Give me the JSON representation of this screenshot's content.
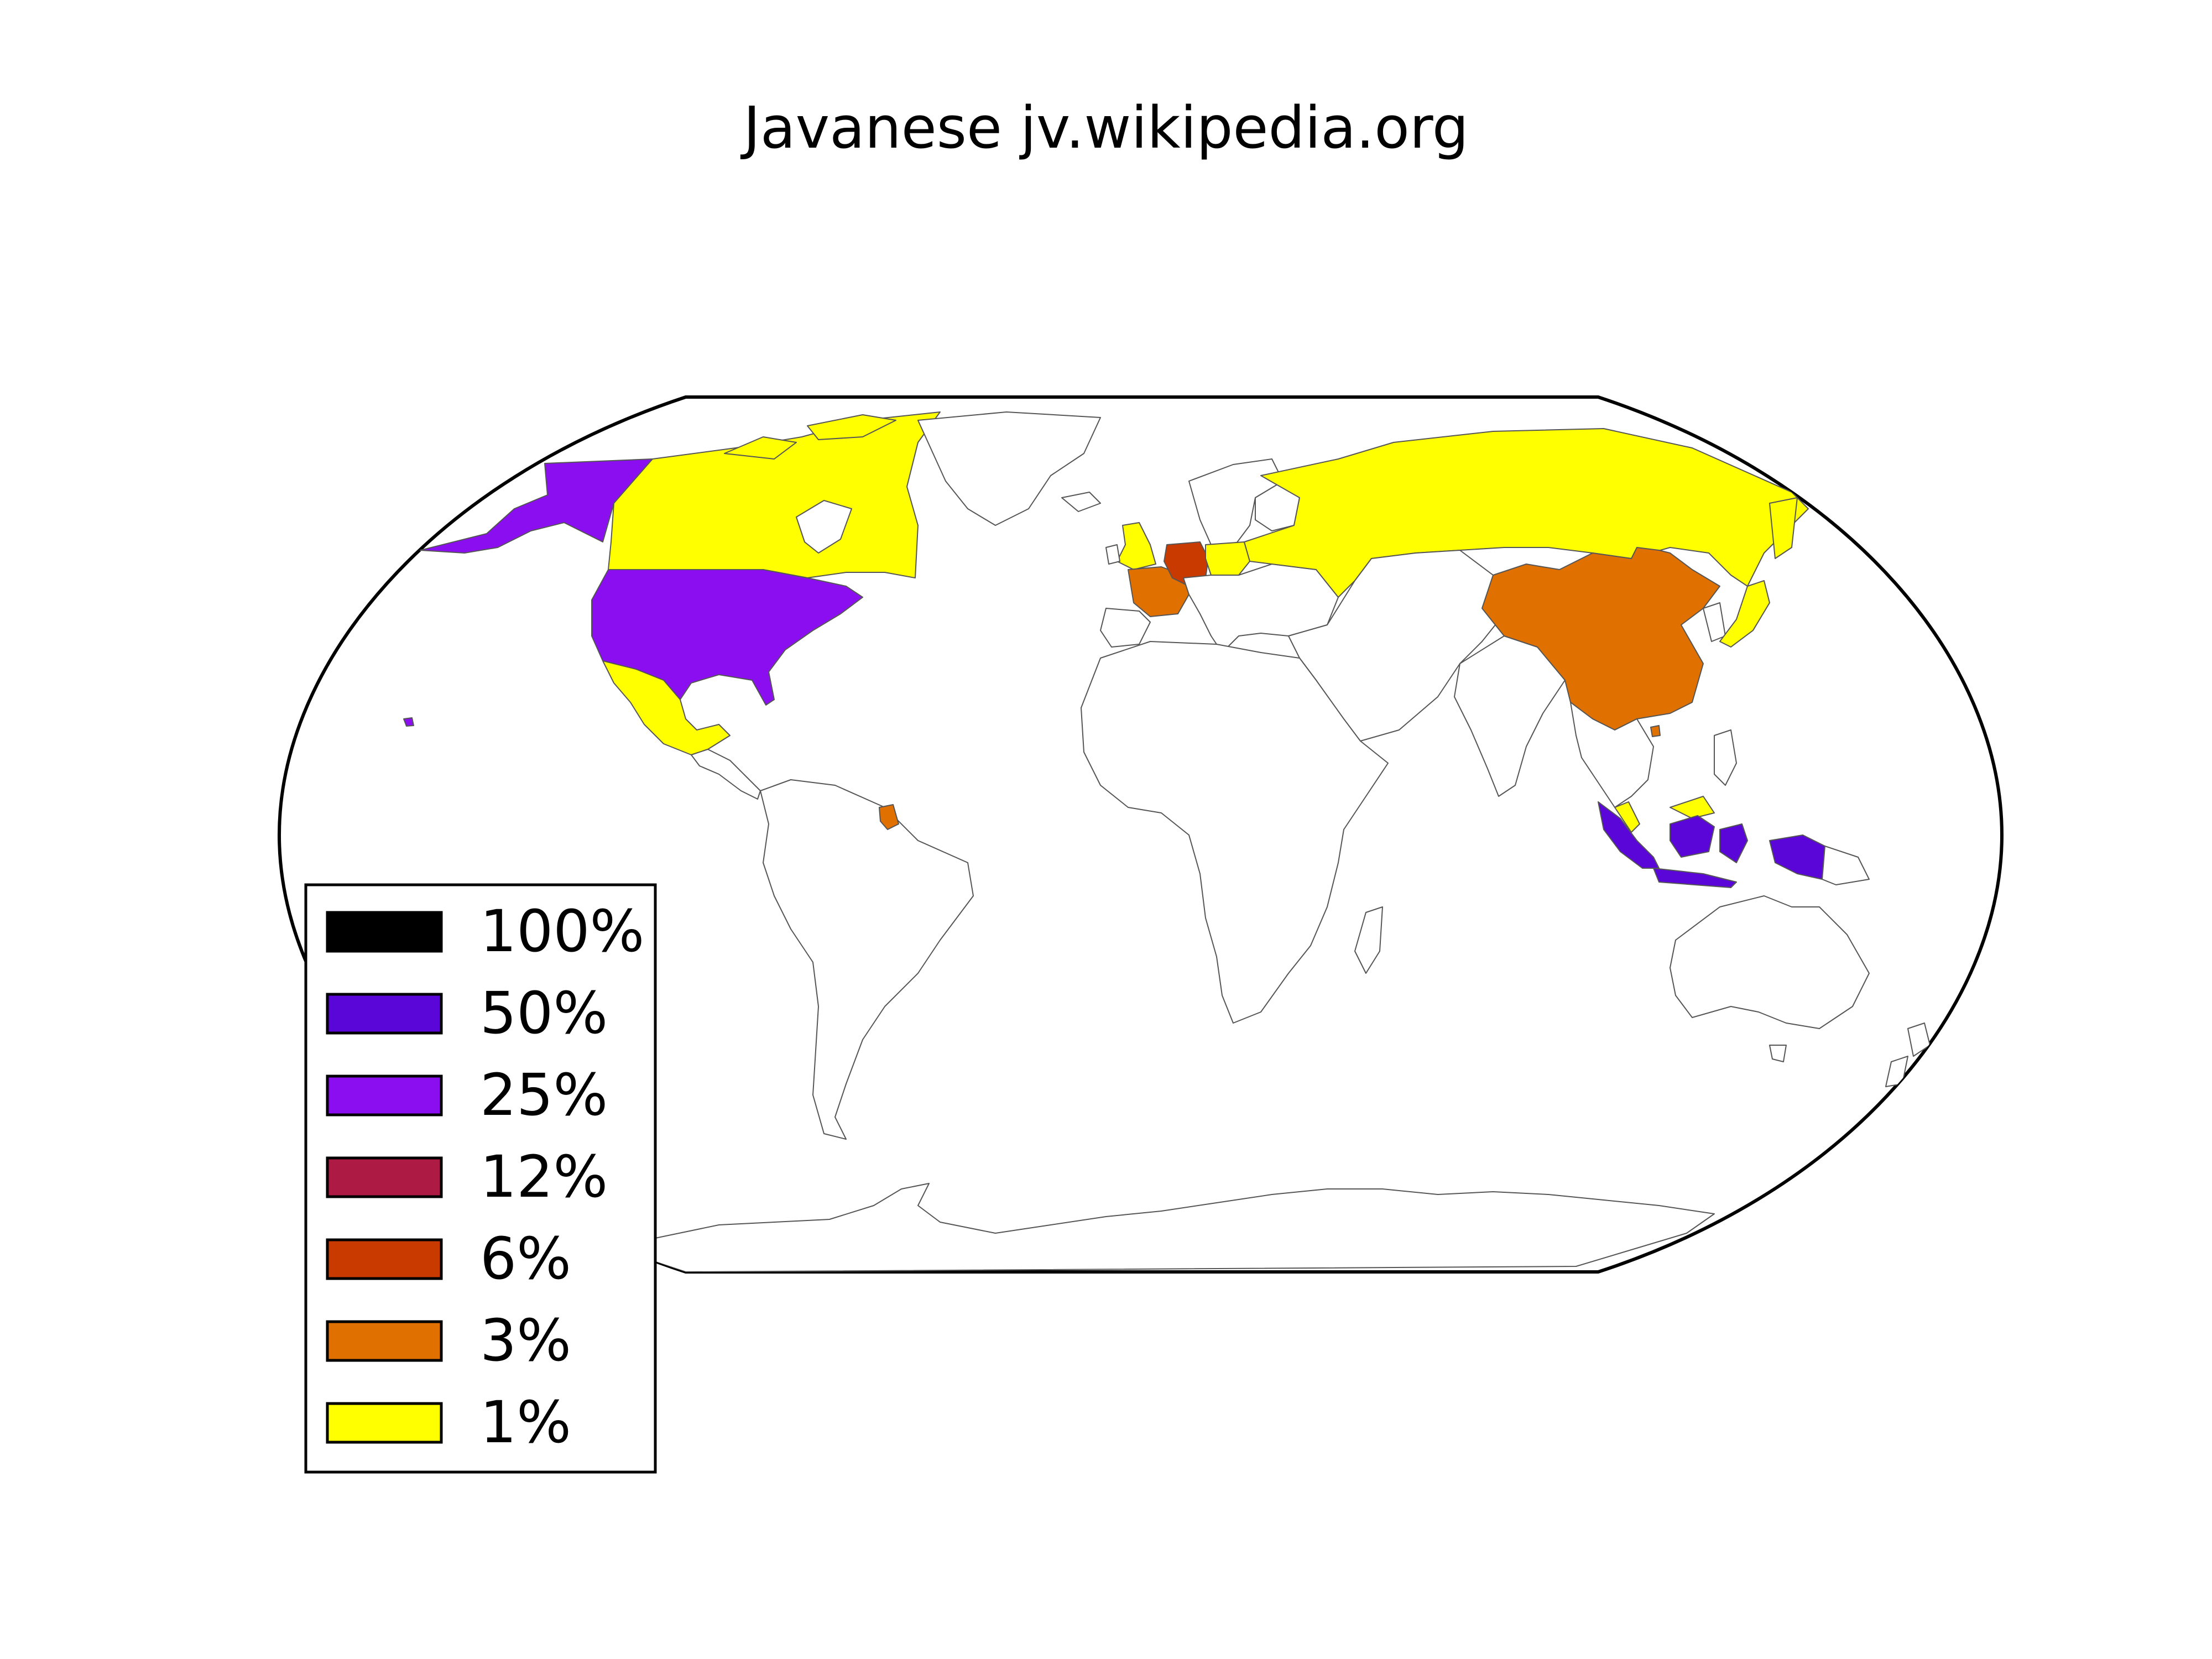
{
  "title": "Javanese jv.wikipedia.org",
  "legend": [
    {
      "label": "100%",
      "color": "#000000"
    },
    {
      "label": "50%",
      "color": "#5a06d8"
    },
    {
      "label": "25%",
      "color": "#8b0ef0"
    },
    {
      "label": "12%",
      "color": "#ad1a44"
    },
    {
      "label": "6%",
      "color": "#c83a00"
    },
    {
      "label": "3%",
      "color": "#e07000"
    },
    {
      "label": "1%",
      "color": "#ffff00"
    }
  ],
  "regions": [
    {
      "name": "Indonesia",
      "bucket": "50%"
    },
    {
      "name": "United States",
      "bucket": "25%"
    },
    {
      "name": "Germany",
      "bucket": "6%"
    },
    {
      "name": "China",
      "bucket": "3%"
    },
    {
      "name": "France",
      "bucket": "3%"
    },
    {
      "name": "Suriname",
      "bucket": "3%"
    },
    {
      "name": "Canada",
      "bucket": "1%"
    },
    {
      "name": "Mexico",
      "bucket": "1%"
    },
    {
      "name": "Russia",
      "bucket": "1%"
    },
    {
      "name": "United Kingdom",
      "bucket": "1%"
    },
    {
      "name": "Poland",
      "bucket": "1%"
    },
    {
      "name": "Japan",
      "bucket": "1%"
    },
    {
      "name": "Malaysia",
      "bucket": "1%"
    },
    {
      "name": "Greenland",
      "bucket": "none"
    },
    {
      "name": "Africa",
      "bucket": "none"
    },
    {
      "name": "South America",
      "bucket": "none"
    },
    {
      "name": "Australia",
      "bucket": "none"
    },
    {
      "name": "Antarctica",
      "bucket": "none"
    }
  ]
}
